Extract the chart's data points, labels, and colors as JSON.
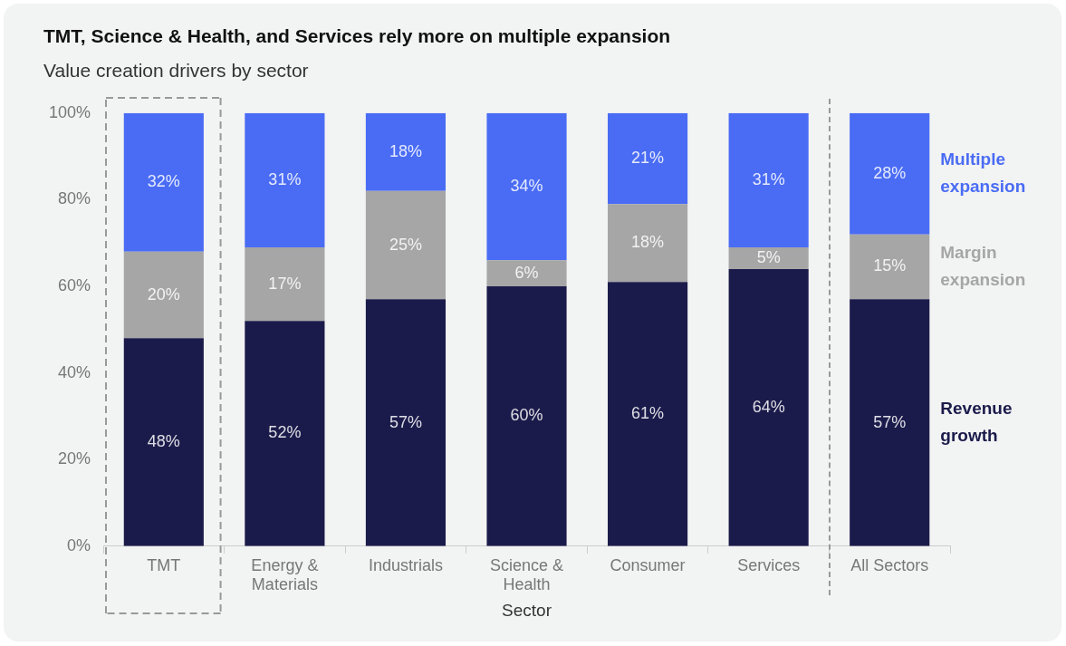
{
  "chart_data": {
    "type": "bar",
    "stacked": true,
    "title": "TMT, Science & Health, and Services rely more on multiple expansion",
    "subtitle": "Value creation drivers by sector",
    "xlabel": "Sector",
    "categories": [
      "TMT",
      "Energy & Materials",
      "Industrials",
      "Science & Health",
      "Consumer",
      "Services",
      "All Sectors"
    ],
    "series": [
      {
        "name": "Revenue growth",
        "color": "#1b1b4b",
        "values": [
          48,
          52,
          57,
          60,
          61,
          64,
          57
        ],
        "value_labels": [
          "48%",
          "52%",
          "57%",
          "60%",
          "61%",
          "64%",
          "57%"
        ]
      },
      {
        "name": "Margin expansion",
        "color": "#a6a6a6",
        "values": [
          20,
          17,
          25,
          6,
          18,
          5,
          15
        ],
        "value_labels": [
          "20%",
          "17%",
          "25%",
          "6%",
          "18%",
          "5%",
          "15%"
        ]
      },
      {
        "name": "Multiple expansion",
        "color": "#4a6cf4",
        "values": [
          32,
          31,
          18,
          34,
          21,
          31,
          28
        ],
        "value_labels": [
          "32%",
          "31%",
          "18%",
          "34%",
          "21%",
          "31%",
          "28%"
        ]
      }
    ],
    "ylim": [
      0,
      100
    ],
    "yticks": [
      {
        "value": 0,
        "label": "0%"
      },
      {
        "value": 20,
        "label": "20%"
      },
      {
        "value": 40,
        "label": "40%"
      },
      {
        "value": 60,
        "label": "60%"
      },
      {
        "value": 80,
        "label": "80%"
      },
      {
        "value": 100,
        "label": "100%"
      }
    ],
    "grid": false,
    "legend": false
  }
}
